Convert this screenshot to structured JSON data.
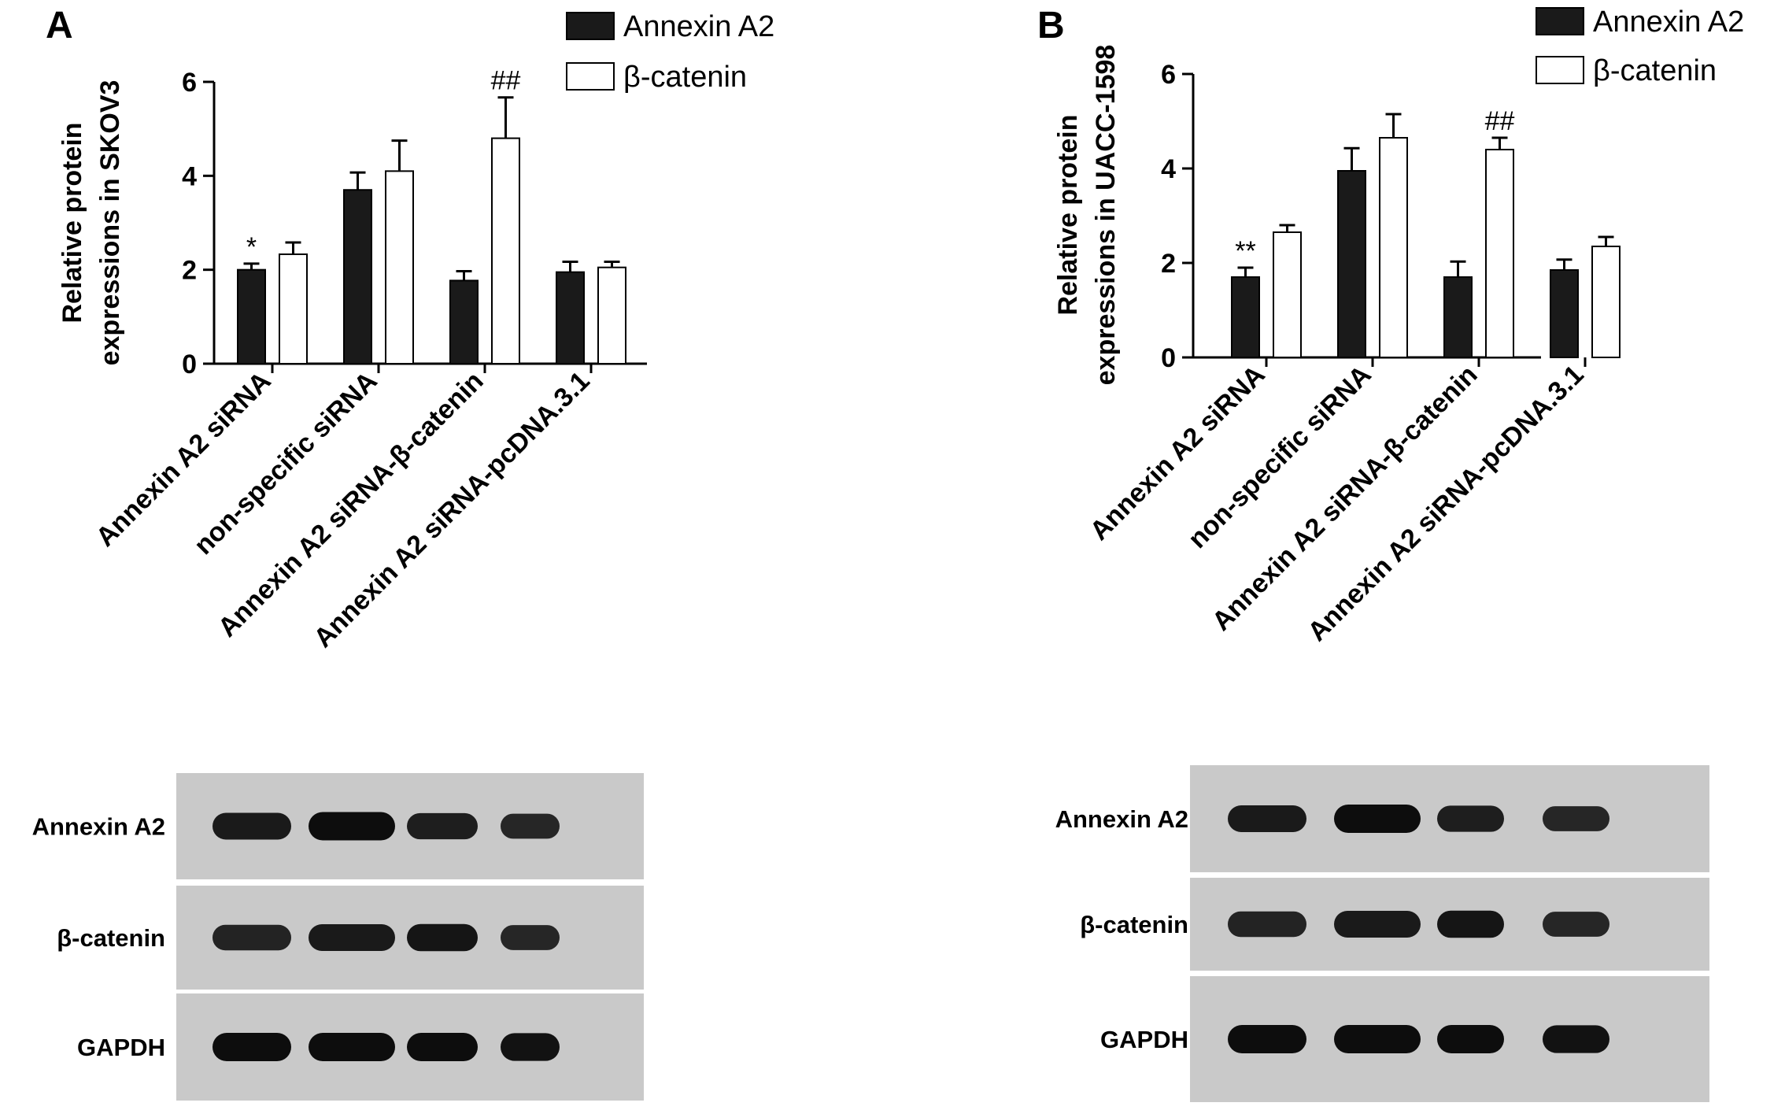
{
  "panels": [
    {
      "letter": "A",
      "legend": [
        "Annexin A2",
        "β-catenin"
      ],
      "blot_labels": [
        "Annexin A2",
        "β-catenin",
        "GAPDH"
      ],
      "chart_data": {
        "type": "bar",
        "ylabel_lines": [
          "Relative protein",
          "expressions in SKOV3"
        ],
        "categories": [
          "Annexin A2 siRNA",
          "non-specific siRNA",
          "Annexin A2 siRNA-β-catenin",
          "Annexin A2 siRNA-pcDNA.3.1"
        ],
        "series": [
          {
            "name": "Annexin A2",
            "values": [
              2.0,
              3.7,
              1.77,
              1.95
            ],
            "errors": [
              0.13,
              0.37,
              0.2,
              0.22
            ],
            "color": "#1a1a1a"
          },
          {
            "name": "β-catenin",
            "values": [
              2.33,
              4.1,
              4.8,
              2.05
            ],
            "errors": [
              0.25,
              0.65,
              0.87,
              0.12
            ],
            "color": "#ffffff"
          }
        ],
        "annotations": [
          {
            "text": "*",
            "category": 0,
            "series": 0
          },
          {
            "text": "##",
            "category": 2,
            "series": 1
          }
        ],
        "yticks": [
          0,
          2,
          4,
          6
        ],
        "ylim": [
          0,
          6
        ]
      }
    },
    {
      "letter": "B",
      "legend": [
        "Annexin A2",
        "β-catenin"
      ],
      "blot_labels": [
        "Annexin A2",
        "β-catenin",
        "GAPDH"
      ],
      "chart_data": {
        "type": "bar",
        "ylabel_lines": [
          "Relative protein",
          "expressions in UACC-1598"
        ],
        "categories": [
          "Annexin A2 siRNA",
          "non-specific siRNA",
          "Annexin A2 siRNA-β-catenin",
          "Annexin A2 siRNA-pcDNA.3.1"
        ],
        "series": [
          {
            "name": "Annexin A2",
            "values": [
              1.7,
              3.95,
              1.7,
              1.85
            ],
            "errors": [
              0.2,
              0.48,
              0.33,
              0.22
            ],
            "color": "#1a1a1a"
          },
          {
            "name": "β-catenin",
            "values": [
              2.65,
              4.65,
              4.4,
              2.35
            ],
            "errors": [
              0.15,
              0.5,
              0.25,
              0.2
            ],
            "color": "#ffffff"
          }
        ],
        "annotations": [
          {
            "text": "**",
            "category": 0,
            "series": 0
          },
          {
            "text": "##",
            "category": 2,
            "series": 1
          }
        ],
        "yticks": [
          0,
          2,
          4,
          6
        ],
        "ylim": [
          0,
          6
        ]
      }
    }
  ]
}
